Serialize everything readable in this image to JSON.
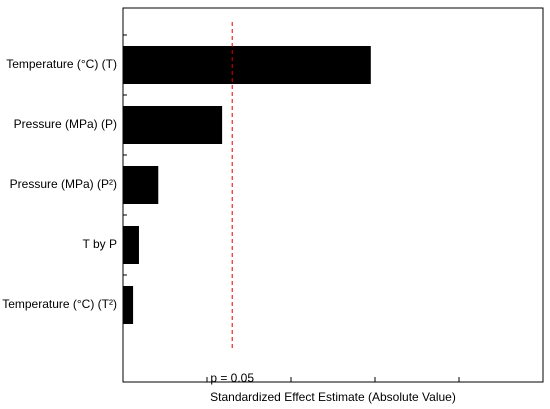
{
  "chart_data": {
    "type": "bar",
    "orientation": "horizontal",
    "categories": [
      "Temperature (°C) (T)",
      "Pressure (MPa) (P)",
      "Pressure (MPa) (P²)",
      "T by P",
      "Temperature (°C) (T²)"
    ],
    "values": [
      2.95,
      1.18,
      0.42,
      0.19,
      0.12
    ],
    "color": "#000000",
    "xlabel": "Standardized Effect Estimate (Absolute Value)",
    "xlim": [
      0,
      5
    ],
    "xticks": [
      1,
      2,
      3,
      4
    ],
    "threshold": {
      "value": 1.3,
      "label": "p = 0.05",
      "color": "#e00000"
    }
  }
}
